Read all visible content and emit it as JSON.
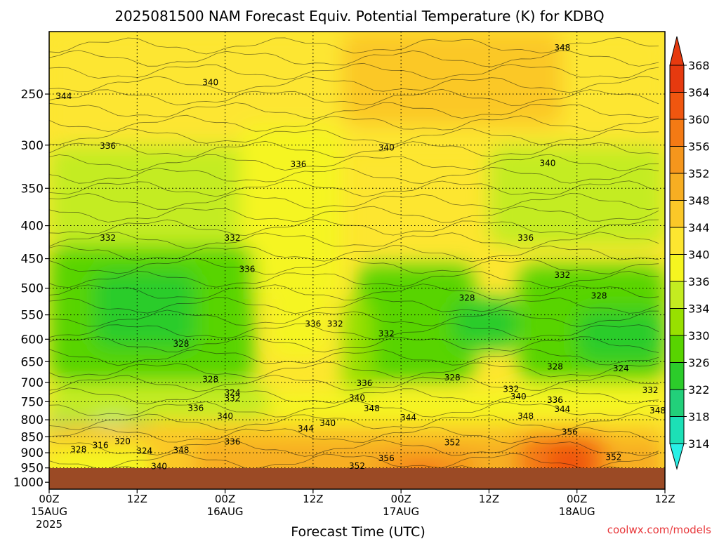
{
  "chart_data": {
    "type": "heatmap",
    "title": "2025081500 NAM Forecast Equiv. Potential Temperature (K) for KDBQ",
    "xlabel": "Forecast Time (UTC)",
    "ylabel": "",
    "units": "K",
    "y_axis": {
      "scale": "log",
      "range": [
        1025,
        200
      ],
      "ticks": [
        250,
        300,
        350,
        400,
        450,
        500,
        550,
        600,
        650,
        700,
        750,
        800,
        850,
        900,
        950,
        1000
      ]
    },
    "x_axis": {
      "range": [
        "2025-08-15 00Z",
        "2025-08-18 12Z"
      ],
      "hours": [
        0,
        84
      ],
      "ticks": [
        {
          "hour": 0,
          "label": "00Z",
          "date": "15AUG",
          "year": "2025"
        },
        {
          "hour": 12,
          "label": "12Z",
          "date": "",
          "year": ""
        },
        {
          "hour": 24,
          "label": "00Z",
          "date": "16AUG",
          "year": ""
        },
        {
          "hour": 36,
          "label": "12Z",
          "date": "",
          "year": ""
        },
        {
          "hour": 48,
          "label": "00Z",
          "date": "17AUG",
          "year": ""
        },
        {
          "hour": 60,
          "label": "12Z",
          "date": "",
          "year": ""
        },
        {
          "hour": 72,
          "label": "00Z",
          "date": "18AUG",
          "year": ""
        },
        {
          "hour": 84,
          "label": "12Z",
          "date": "",
          "year": ""
        }
      ]
    },
    "colorbar": {
      "levels": [
        368,
        364,
        360,
        356,
        352,
        348,
        344,
        340,
        336,
        334,
        330,
        326,
        322,
        318,
        314
      ],
      "colors": [
        "#e63a0f",
        "#f0560f",
        "#f47a14",
        "#f5961c",
        "#f7ae22",
        "#fbc828",
        "#fde630",
        "#f5f520",
        "#c4ec20",
        "#98e000",
        "#58d400",
        "#2ccc2a",
        "#22d07a",
        "#1ce0b6",
        "#28f0e6"
      ]
    },
    "grid": true,
    "field_description_samples": [
      {
        "hour": 6,
        "pressure": 500,
        "value": 326
      },
      {
        "hour": 9,
        "pressure": 850,
        "value": 316
      },
      {
        "hour": 30,
        "pressure": 925,
        "value": 352
      },
      {
        "hour": 50,
        "pressure": 960,
        "value": 360
      },
      {
        "hour": 70,
        "pressure": 920,
        "value": 364
      },
      {
        "hour": 56,
        "pressure": 200,
        "value": 348
      },
      {
        "hour": 78,
        "pressure": 550,
        "value": 326
      },
      {
        "hour": 20,
        "pressure": 300,
        "value": 336
      }
    ],
    "contour_labels": [
      {
        "text": "344",
        "hour": 2,
        "pressure": 252
      },
      {
        "text": "340",
        "hour": 22,
        "pressure": 240
      },
      {
        "text": "348",
        "hour": 70,
        "pressure": 212
      },
      {
        "text": "336",
        "hour": 8,
        "pressure": 301
      },
      {
        "text": "336",
        "hour": 34,
        "pressure": 321
      },
      {
        "text": "340",
        "hour": 46,
        "pressure": 303
      },
      {
        "text": "340",
        "hour": 68,
        "pressure": 320
      },
      {
        "text": "332",
        "hour": 8,
        "pressure": 418
      },
      {
        "text": "332",
        "hour": 25,
        "pressure": 418
      },
      {
        "text": "336",
        "hour": 27,
        "pressure": 467
      },
      {
        "text": "336",
        "hour": 65,
        "pressure": 418
      },
      {
        "text": "332",
        "hour": 70,
        "pressure": 477
      },
      {
        "text": "328",
        "hour": 57,
        "pressure": 518
      },
      {
        "text": "328",
        "hour": 75,
        "pressure": 514
      },
      {
        "text": "336",
        "hour": 36,
        "pressure": 568
      },
      {
        "text": "332",
        "hour": 39,
        "pressure": 568
      },
      {
        "text": "332",
        "hour": 46,
        "pressure": 588
      },
      {
        "text": "328",
        "hour": 18,
        "pressure": 610
      },
      {
        "text": "328",
        "hour": 22,
        "pressure": 692
      },
      {
        "text": "328",
        "hour": 69,
        "pressure": 662
      },
      {
        "text": "324",
        "hour": 78,
        "pressure": 666
      },
      {
        "text": "328",
        "hour": 55,
        "pressure": 688
      },
      {
        "text": "336",
        "hour": 43,
        "pressure": 702
      },
      {
        "text": "332",
        "hour": 63,
        "pressure": 717
      },
      {
        "text": "340",
        "hour": 64,
        "pressure": 736
      },
      {
        "text": "336",
        "hour": 69,
        "pressure": 746
      },
      {
        "text": "344",
        "hour": 70,
        "pressure": 770
      },
      {
        "text": "332",
        "hour": 82,
        "pressure": 720
      },
      {
        "text": "324",
        "hour": 25,
        "pressure": 726
      },
      {
        "text": "332",
        "hour": 25,
        "pressure": 741
      },
      {
        "text": "336",
        "hour": 20,
        "pressure": 767
      },
      {
        "text": "340",
        "hour": 24,
        "pressure": 790
      },
      {
        "text": "340",
        "hour": 42,
        "pressure": 740
      },
      {
        "text": "348",
        "hour": 44,
        "pressure": 768
      },
      {
        "text": "344",
        "hour": 49,
        "pressure": 794
      },
      {
        "text": "348",
        "hour": 65,
        "pressure": 790
      },
      {
        "text": "348",
        "hour": 83,
        "pressure": 774
      },
      {
        "text": "340",
        "hour": 38,
        "pressure": 810
      },
      {
        "text": "344",
        "hour": 35,
        "pressure": 826
      },
      {
        "text": "336",
        "hour": 25,
        "pressure": 865
      },
      {
        "text": "328",
        "hour": 4,
        "pressure": 890
      },
      {
        "text": "316",
        "hour": 7,
        "pressure": 876
      },
      {
        "text": "320",
        "hour": 10,
        "pressure": 864
      },
      {
        "text": "324",
        "hour": 13,
        "pressure": 894
      },
      {
        "text": "348",
        "hour": 18,
        "pressure": 892
      },
      {
        "text": "340",
        "hour": 15,
        "pressure": 945
      },
      {
        "text": "352",
        "hour": 55,
        "pressure": 868
      },
      {
        "text": "356",
        "hour": 46,
        "pressure": 918
      },
      {
        "text": "352",
        "hour": 42,
        "pressure": 944
      },
      {
        "text": "356",
        "hour": 71,
        "pressure": 836
      },
      {
        "text": "352",
        "hour": 77,
        "pressure": 914
      }
    ]
  },
  "credit": "coolwx.com/models"
}
